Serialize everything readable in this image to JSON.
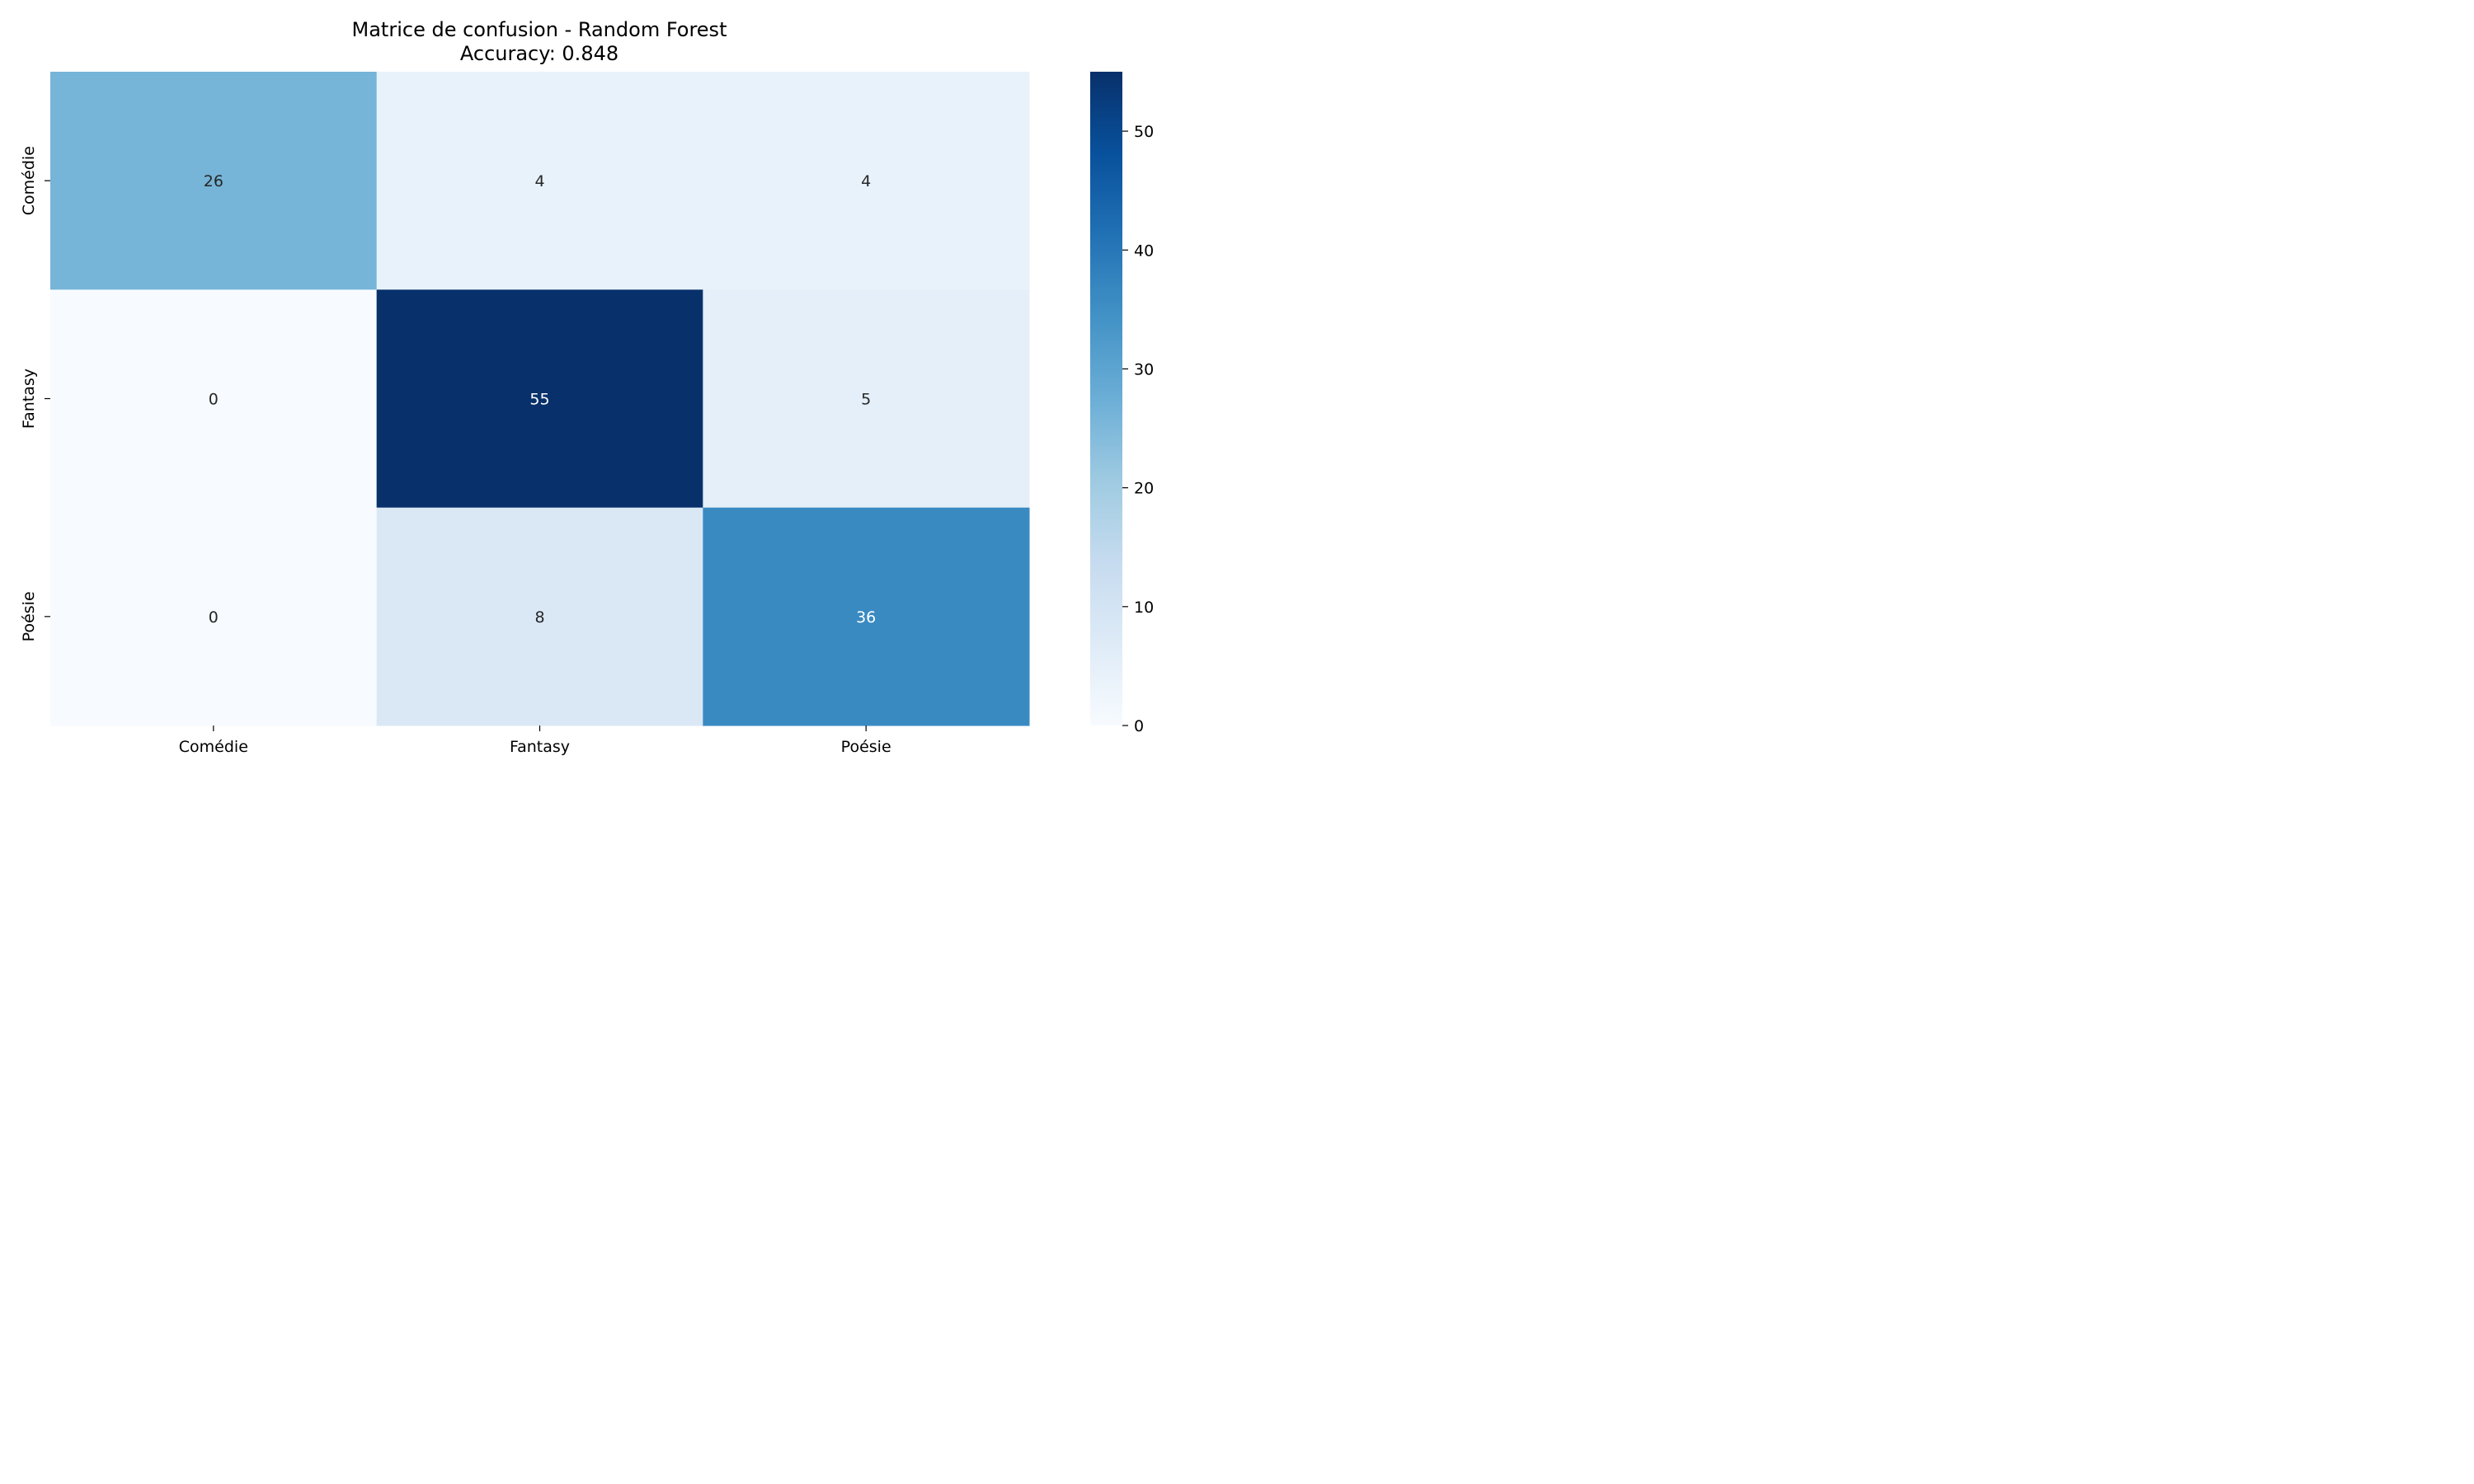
{
  "chart_data": {
    "type": "heatmap",
    "title": [
      "Matrice de confusion - Random Forest",
      "Accuracy: 0.848"
    ],
    "x_categories": [
      "Comédie",
      "Fantasy",
      "Poésie"
    ],
    "y_categories": [
      "Comédie",
      "Fantasy",
      "Poésie"
    ],
    "values": [
      [
        26,
        4,
        4
      ],
      [
        0,
        55,
        5
      ],
      [
        0,
        8,
        36
      ]
    ],
    "xlabel": "",
    "ylabel": "",
    "colormap": "Blues",
    "colorbar": {
      "range": [
        0,
        55
      ],
      "ticks": [
        0,
        10,
        20,
        30,
        40,
        50
      ]
    },
    "annotations": true,
    "grid": false
  }
}
